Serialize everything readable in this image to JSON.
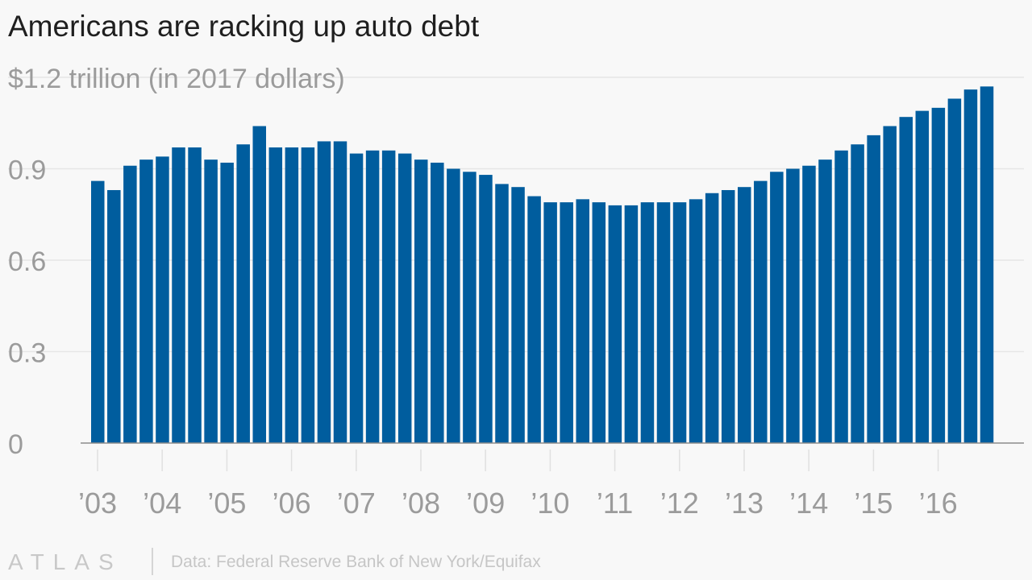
{
  "title": "Americans are racking up auto debt",
  "chart_data": {
    "type": "bar",
    "title": "Americans are racking up auto debt",
    "unit_label": "$1.2 trillion (in 2017 dollars)",
    "y_ticks": [
      {
        "value": 0,
        "label": "0"
      },
      {
        "value": 0.3,
        "label": "0.3"
      },
      {
        "value": 0.6,
        "label": "0.6"
      },
      {
        "value": 0.9,
        "label": "0.9"
      },
      {
        "value": 1.2,
        "label": ""
      }
    ],
    "ylim": [
      0,
      1.2
    ],
    "grid": true,
    "x_ticks": [
      "’03",
      "’04",
      "’05",
      "’06",
      "’07",
      "’08",
      "’09",
      "’10",
      "’11",
      "’12",
      "’13",
      "’14",
      "’15",
      "’16"
    ],
    "periods_per_tick": 4,
    "color": "#005d9e",
    "values": [
      0.86,
      0.83,
      0.91,
      0.93,
      0.94,
      0.97,
      0.97,
      0.93,
      0.92,
      0.98,
      1.04,
      0.97,
      0.97,
      0.97,
      0.99,
      0.99,
      0.95,
      0.96,
      0.96,
      0.95,
      0.93,
      0.92,
      0.9,
      0.89,
      0.88,
      0.85,
      0.84,
      0.81,
      0.79,
      0.79,
      0.8,
      0.79,
      0.78,
      0.78,
      0.79,
      0.79,
      0.79,
      0.8,
      0.82,
      0.83,
      0.84,
      0.86,
      0.89,
      0.9,
      0.91,
      0.93,
      0.96,
      0.98,
      1.01,
      1.04,
      1.07,
      1.09,
      1.1,
      1.13,
      1.16,
      1.17
    ]
  },
  "footer": {
    "logo": "ATLAS",
    "source": "Data: Federal Reserve Bank of New York/Equifax"
  }
}
